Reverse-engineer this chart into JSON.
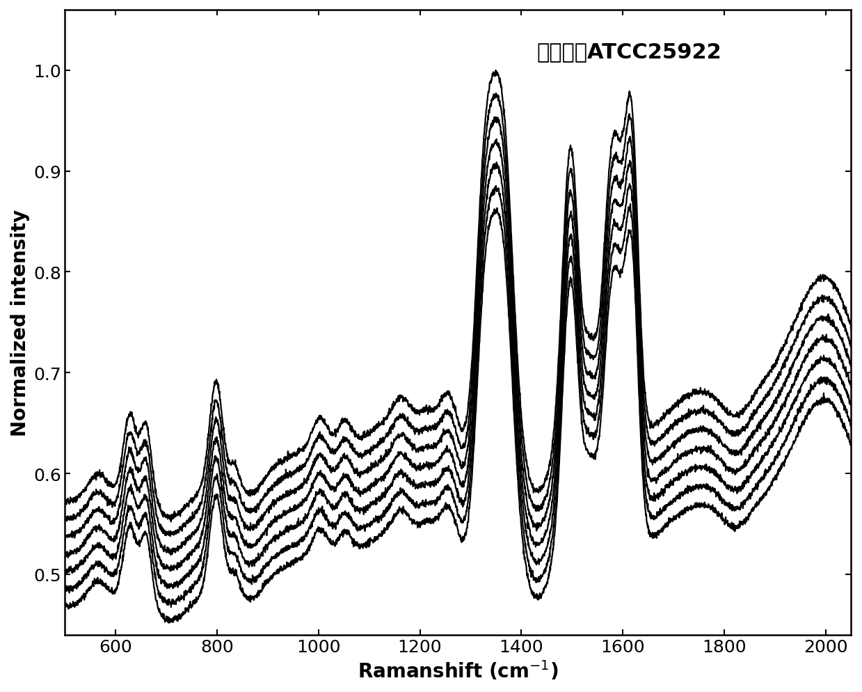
{
  "title": "大肠杆菌ATCC25922",
  "xlabel": "Ramanshift (cm$^{-1}$)",
  "ylabel": "Normalized intensity",
  "xlim": [
    500,
    2050
  ],
  "ylim": [
    0.44,
    1.06
  ],
  "xticks": [
    600,
    800,
    1000,
    1200,
    1400,
    1600,
    1800,
    2000
  ],
  "yticks": [
    0.5,
    0.6,
    0.7,
    0.8,
    0.9,
    1.0
  ],
  "n_spectra": 7,
  "background_color": "#ffffff",
  "line_color": "#000000",
  "line_width": 1.6,
  "title_fontsize": 22,
  "label_fontsize": 20,
  "tick_fontsize": 18
}
